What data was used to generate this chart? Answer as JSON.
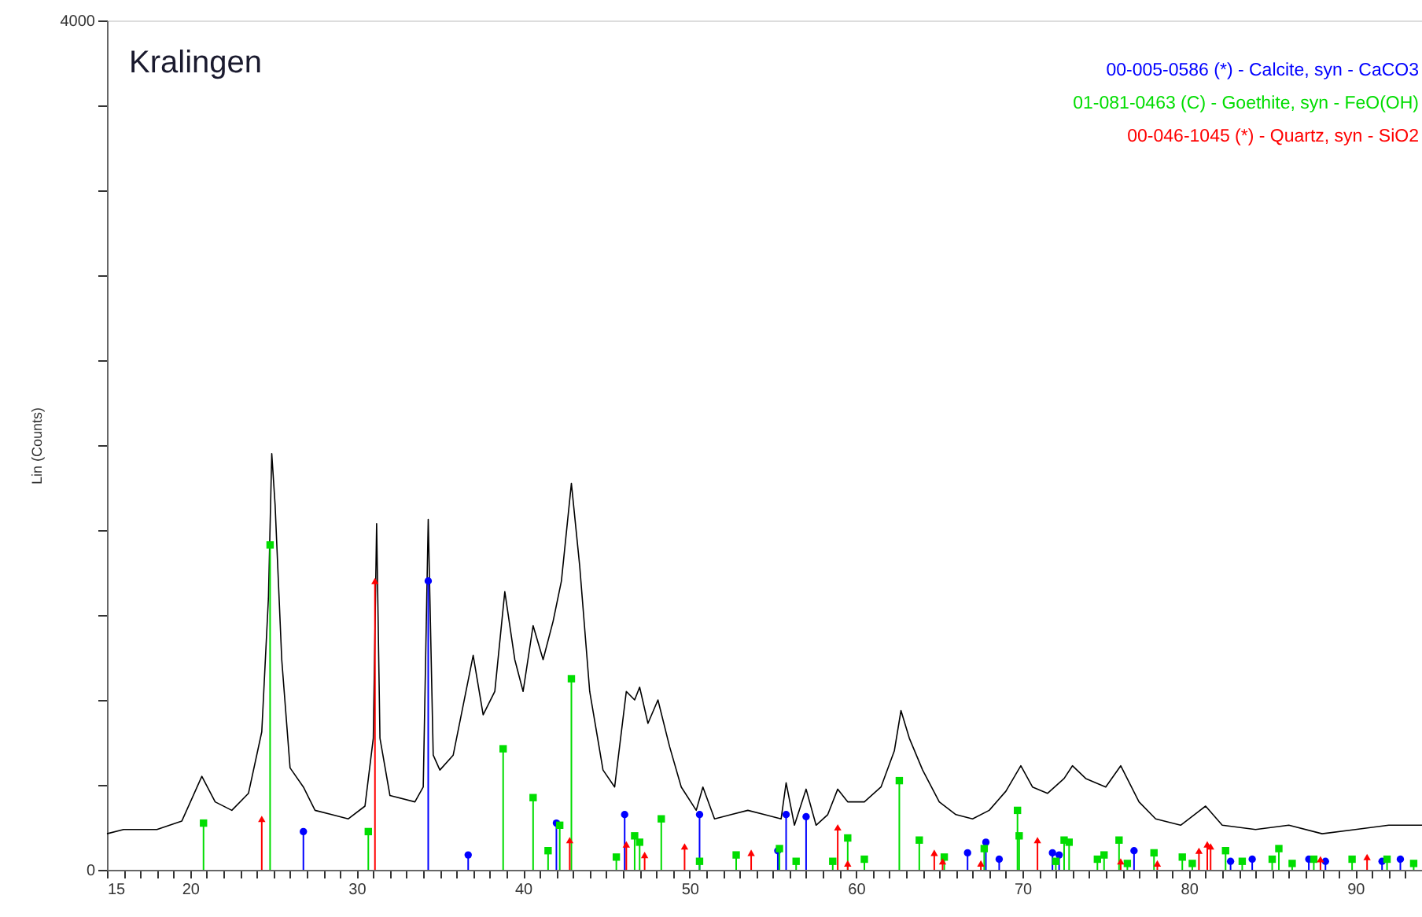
{
  "chart_data": {
    "type": "line",
    "title": "Kralingen",
    "ylabel": "Lin (Counts)",
    "xlim": [
      15,
      94
    ],
    "ylim": [
      0,
      4000
    ],
    "xticks": [
      15,
      {
        "value": 16,
        "label": null
      },
      {
        "value": 17,
        "label": null
      },
      {
        "value": 18,
        "label": null
      },
      {
        "value": 19,
        "label": null
      },
      20,
      {
        "value": 21,
        "label": null
      },
      {
        "value": 22,
        "label": null
      },
      {
        "value": 23,
        "label": null
      },
      {
        "value": 24,
        "label": null
      },
      {
        "value": 25,
        "label": null
      },
      {
        "value": 26,
        "label": null
      },
      {
        "value": 27,
        "label": null
      },
      {
        "value": 28,
        "label": null
      },
      {
        "value": 29,
        "label": null
      },
      30,
      {
        "value": 31,
        "label": null
      },
      {
        "value": 32,
        "label": null
      },
      {
        "value": 33,
        "label": null
      },
      {
        "value": 34,
        "label": null
      },
      {
        "value": 35,
        "label": null
      },
      {
        "value": 36,
        "label": null
      },
      {
        "value": 37,
        "label": null
      },
      {
        "value": 38,
        "label": null
      },
      {
        "value": 39,
        "label": null
      },
      40,
      {
        "value": 41,
        "label": null
      },
      {
        "value": 42,
        "label": null
      },
      {
        "value": 43,
        "label": null
      },
      {
        "value": 44,
        "label": null
      },
      {
        "value": 45,
        "label": null
      },
      {
        "value": 46,
        "label": null
      },
      {
        "value": 47,
        "label": null
      },
      {
        "value": 48,
        "label": null
      },
      {
        "value": 49,
        "label": null
      },
      50,
      {
        "value": 51,
        "label": null
      },
      {
        "value": 52,
        "label": null
      },
      {
        "value": 53,
        "label": null
      },
      {
        "value": 54,
        "label": null
      },
      {
        "value": 55,
        "label": null
      },
      {
        "value": 56,
        "label": null
      },
      {
        "value": 57,
        "label": null
      },
      {
        "value": 58,
        "label": null
      },
      {
        "value": 59,
        "label": null
      },
      60,
      {
        "value": 61,
        "label": null
      },
      {
        "value": 62,
        "label": null
      },
      {
        "value": 63,
        "label": null
      },
      {
        "value": 64,
        "label": null
      },
      {
        "value": 65,
        "label": null
      },
      {
        "value": 66,
        "label": null
      },
      {
        "value": 67,
        "label": null
      },
      {
        "value": 68,
        "label": null
      },
      {
        "value": 69,
        "label": null
      },
      70,
      {
        "value": 71,
        "label": null
      },
      {
        "value": 72,
        "label": null
      },
      {
        "value": 73,
        "label": null
      },
      {
        "value": 74,
        "label": null
      },
      {
        "value": 75,
        "label": null
      },
      {
        "value": 76,
        "label": null
      },
      {
        "value": 77,
        "label": null
      },
      {
        "value": 78,
        "label": null
      },
      {
        "value": 79,
        "label": null
      },
      80,
      {
        "value": 81,
        "label": null
      },
      {
        "value": 82,
        "label": null
      },
      {
        "value": 83,
        "label": null
      },
      {
        "value": 84,
        "label": null
      },
      {
        "value": 85,
        "label": null
      },
      {
        "value": 86,
        "label": null
      },
      {
        "value": 87,
        "label": null
      },
      {
        "value": 88,
        "label": null
      },
      {
        "value": 89,
        "label": null
      },
      90,
      {
        "value": 91,
        "label": null
      },
      {
        "value": 92,
        "label": null
      },
      {
        "value": 93,
        "label": null
      }
    ],
    "yticks": [
      0,
      {
        "value": 400,
        "label": null
      },
      {
        "value": 800,
        "label": null
      },
      {
        "value": 1200,
        "label": null
      },
      {
        "value": 1600,
        "label": null
      },
      {
        "value": 2000,
        "label": null
      },
      {
        "value": 2400,
        "label": null
      },
      {
        "value": 2800,
        "label": null
      },
      {
        "value": 3200,
        "label": null
      },
      {
        "value": 3600,
        "label": null
      },
      4000
    ],
    "grid": false,
    "legend": "top right",
    "series": [
      {
        "color": "#000000",
        "marker": "none",
        "x": [
          15,
          16,
          18,
          19.5,
          20.7,
          21.5,
          22.5,
          23.5,
          24.3,
          24.7,
          24.9,
          25.1,
          25.5,
          26,
          26.8,
          27.5,
          28.5,
          29.5,
          30.5,
          31.0,
          31.2,
          31.4,
          32,
          33.5,
          34.0,
          34.3,
          34.6,
          35.0,
          35.8,
          37.0,
          37.6,
          38.3,
          38.9,
          39.5,
          40.0,
          40.6,
          41.2,
          41.8,
          42.3,
          42.9,
          43.4,
          44.0,
          44.8,
          45.5,
          46.2,
          46.7,
          47.0,
          47.5,
          48.1,
          48.8,
          49.5,
          50.4,
          50.8,
          51.5,
          52.5,
          53.5,
          54.5,
          55.5,
          55.8,
          56.3,
          57.0,
          57.6,
          58.3,
          58.9,
          59.5,
          60.5,
          61.5,
          62.3,
          62.7,
          63.2,
          64.0,
          65.0,
          66.0,
          67.0,
          68.0,
          69.0,
          69.9,
          70.6,
          71.5,
          72.5,
          73.0,
          73.8,
          75.0,
          75.9,
          77.0,
          78.0,
          79.5,
          81.0,
          82.0,
          84.0,
          86.0,
          88.0,
          90.0,
          92.0,
          94.0
        ],
        "values": [
          170,
          190,
          190,
          230,
          440,
          320,
          280,
          360,
          650,
          1280,
          1960,
          1720,
          990,
          480,
          390,
          280,
          260,
          240,
          300,
          620,
          1630,
          620,
          350,
          320,
          390,
          1650,
          540,
          470,
          540,
          1010,
          730,
          840,
          1310,
          990,
          840,
          1150,
          990,
          1170,
          1360,
          1820,
          1430,
          840,
          470,
          390,
          840,
          800,
          860,
          690,
          800,
          580,
          390,
          280,
          390,
          240,
          260,
          280,
          260,
          240,
          410,
          210,
          380,
          210,
          260,
          380,
          320,
          320,
          390,
          560,
          750,
          620,
          470,
          320,
          260,
          240,
          280,
          370,
          490,
          390,
          360,
          430,
          490,
          430,
          390,
          490,
          320,
          240,
          210,
          300,
          210,
          190,
          210,
          170,
          190,
          210,
          210
        ]
      },
      {
        "type": "lollipop",
        "name": "00-005-0586 (*) - Calcite, syn - CaCO3",
        "color": "#0000ff",
        "marker": "circle",
        "x": [
          26.8,
          34.3,
          36.7,
          42.0,
          46.1,
          50.6,
          55.3,
          55.8,
          57.0,
          66.7,
          67.8,
          68.6,
          71.8,
          72.2,
          76.7,
          82.5,
          83.8,
          87.2,
          88.2,
          91.6,
          92.7
        ],
        "values": [
          180,
          1360,
          70,
          220,
          260,
          260,
          90,
          260,
          250,
          80,
          130,
          50,
          80,
          70,
          90,
          40,
          50,
          50,
          40,
          40,
          50
        ]
      },
      {
        "type": "lollipop",
        "name": "01-081-0463 (C) - Goethite, syn - FeO(OH)",
        "color": "#00dd00",
        "marker": "square",
        "x": [
          20.8,
          24.8,
          30.7,
          38.8,
          40.6,
          41.5,
          42.2,
          42.9,
          45.6,
          46.7,
          47.0,
          48.3,
          50.6,
          52.8,
          55.4,
          56.4,
          58.6,
          59.5,
          60.5,
          62.6,
          63.8,
          65.3,
          67.7,
          69.7,
          69.8,
          72.0,
          72.5,
          72.8,
          74.5,
          74.9,
          75.8,
          76.3,
          77.9,
          79.6,
          80.2,
          82.2,
          83.2,
          85.0,
          85.4,
          86.2,
          87.5,
          89.8,
          91.9,
          93.5
        ],
        "values": [
          220,
          1530,
          180,
          570,
          340,
          90,
          210,
          900,
          60,
          160,
          130,
          240,
          40,
          70,
          100,
          40,
          40,
          150,
          50,
          420,
          140,
          60,
          100,
          280,
          160,
          40,
          140,
          130,
          50,
          70,
          140,
          30,
          80,
          60,
          30,
          90,
          40,
          50,
          100,
          30,
          50,
          50,
          50,
          30
        ]
      },
      {
        "type": "lollipop",
        "name": "00-046-1045 (*) - Quartz, syn - SiO2",
        "color": "#ff0000",
        "marker": "triangle",
        "x": [
          24.3,
          31.1,
          42.8,
          46.2,
          47.3,
          49.7,
          53.7,
          58.9,
          59.5,
          64.7,
          65.2,
          67.5,
          70.9,
          75.9,
          78.1,
          80.6,
          81.1,
          81.3,
          87.9,
          90.7
        ],
        "values": [
          240,
          1360,
          140,
          120,
          70,
          110,
          80,
          200,
          30,
          80,
          40,
          30,
          140,
          40,
          30,
          90,
          120,
          110,
          50,
          60
        ]
      }
    ]
  }
}
